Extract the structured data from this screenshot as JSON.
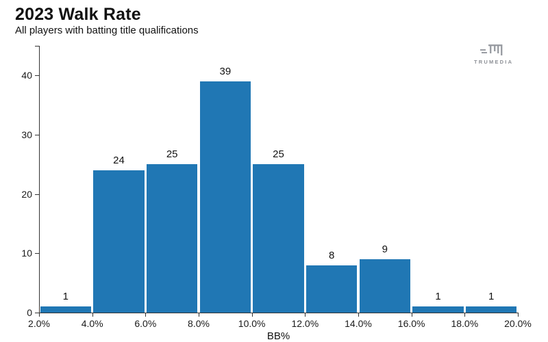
{
  "header": {
    "title": "2023 Walk Rate",
    "subtitle": "All players with batting title qualifications"
  },
  "logo": {
    "icon": "trumedia-logo-icon",
    "text": "TRUMEDIA",
    "color": "#9a9da3"
  },
  "chart_data": {
    "type": "bar",
    "subtype": "histogram",
    "title": "2023 Walk Rate",
    "subtitle": "All players with batting title qualifications",
    "xlabel": "BB%",
    "ylabel": "",
    "bin_edges_pct": [
      2.0,
      4.0,
      6.0,
      8.0,
      10.0,
      12.0,
      14.0,
      16.0,
      18.0,
      20.0
    ],
    "x_tick_labels": [
      "2.0%",
      "4.0%",
      "6.0%",
      "8.0%",
      "10.0%",
      "12.0%",
      "14.0%",
      "16.0%",
      "18.0%",
      "20.0%"
    ],
    "values": [
      1,
      24,
      25,
      39,
      25,
      8,
      9,
      1,
      1
    ],
    "bar_value_labels": [
      "1",
      "24",
      "25",
      "39",
      "25",
      "8",
      "9",
      "1",
      "1"
    ],
    "y_ticks": [
      0,
      10,
      20,
      30,
      40
    ],
    "ylim": [
      0,
      45
    ],
    "grid": false,
    "legend_position": "none",
    "bar_color": "#2077b4",
    "axis_color": "#333333",
    "background_color": "#ffffff"
  }
}
